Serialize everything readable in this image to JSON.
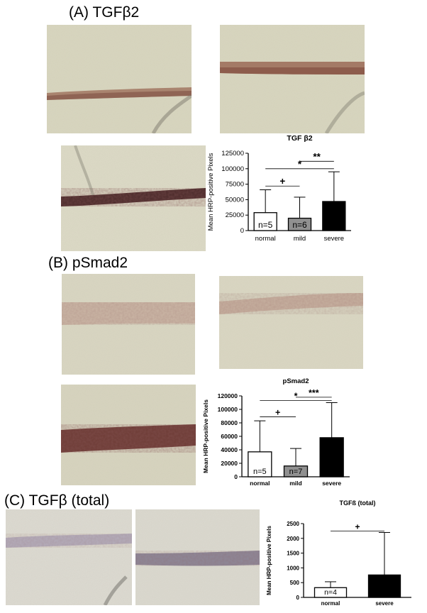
{
  "figure": {
    "panels": [
      {
        "id": "A",
        "label": "(A) TGFβ2"
      },
      {
        "id": "B",
        "label": "(B) pSmad2"
      },
      {
        "id": "C",
        "label": "(C) TGFβ (total)"
      }
    ]
  },
  "chart_data": [
    {
      "id": "A",
      "type": "bar",
      "title": "TGF β2",
      "ylabel": "Mean HRP-positive Pixels",
      "xlabel": "",
      "ylim": [
        0,
        125000
      ],
      "yticks": [
        0,
        25000,
        50000,
        75000,
        100000,
        125000
      ],
      "ytick_labels": [
        "0",
        "25000",
        "50000",
        "75000",
        "100000",
        "125000"
      ],
      "categories": [
        "normal",
        "mild",
        "severe"
      ],
      "values": [
        29000,
        20000,
        47000
      ],
      "errors": [
        37000,
        34000,
        48000
      ],
      "bar_colors": [
        "#ffffff",
        "#909090",
        "#000000"
      ],
      "n_labels": [
        "n=5",
        "n=6",
        "n=6"
      ],
      "n_label_colors": [
        "#000000",
        "#000000",
        "#ffffff"
      ],
      "grid": false,
      "bold": false,
      "significance": [
        {
          "from": 0,
          "to": 1,
          "y": 72000,
          "label": "+"
        },
        {
          "from": 0,
          "to": 2,
          "y": 100000,
          "label": "*"
        },
        {
          "from": 1,
          "to": 2,
          "y": 112000,
          "label": "**"
        }
      ]
    },
    {
      "id": "B",
      "type": "bar",
      "title": "pSmad2",
      "ylabel": "Mean HRP-positive Pixels",
      "xlabel": "",
      "ylim": [
        0,
        120000
      ],
      "yticks": [
        0,
        20000,
        40000,
        60000,
        80000,
        100000,
        120000
      ],
      "ytick_labels": [
        "0",
        "20000",
        "40000",
        "60000",
        "80000",
        "100000",
        "120000"
      ],
      "categories": [
        "normal",
        "mild",
        "severe"
      ],
      "values": [
        37000,
        16000,
        58000
      ],
      "errors": [
        46000,
        26000,
        52000
      ],
      "bar_colors": [
        "#ffffff",
        "#909090",
        "#000000"
      ],
      "n_labels": [
        "n=5",
        "n=7",
        "n=6"
      ],
      "n_label_colors": [
        "#000000",
        "#000000",
        "#ffffff"
      ],
      "grid": false,
      "bold": true,
      "significance": [
        {
          "from": 0,
          "to": 1,
          "y": 89000,
          "label": "+"
        },
        {
          "from": 0,
          "to": 2,
          "y": 113000,
          "label": "*"
        },
        {
          "from": 1,
          "to": 2,
          "y": 118000,
          "label": "***"
        }
      ]
    },
    {
      "id": "C",
      "type": "bar",
      "title": "TGFß (total)",
      "ylabel": "Mean HRP-positive Pixels",
      "xlabel": "",
      "ylim": [
        0,
        2500
      ],
      "yticks": [
        0,
        500,
        1000,
        1500,
        2000,
        2500
      ],
      "ytick_labels": [
        "0",
        "500",
        "1000",
        "1500",
        "2000",
        "2500"
      ],
      "categories": [
        "normal",
        "severe"
      ],
      "values": [
        330,
        760
      ],
      "errors": [
        200,
        1440
      ],
      "bar_colors": [
        "#ffffff",
        "#000000"
      ],
      "n_labels": [
        "n=4",
        "n=6"
      ],
      "n_label_colors": [
        "#000000",
        "#ffffff"
      ],
      "grid": false,
      "bold": true,
      "significance": [
        {
          "from": 0,
          "to": 1,
          "y": 2250,
          "label": "+"
        }
      ]
    }
  ]
}
